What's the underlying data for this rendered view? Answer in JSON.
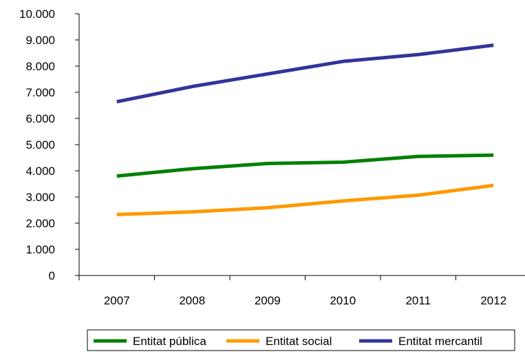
{
  "chart_data": {
    "type": "line",
    "x": [
      "2007",
      "2008",
      "2009",
      "2010",
      "2011",
      "2012"
    ],
    "y_ticks": [
      "0",
      "1.000",
      "2.000",
      "3.000",
      "4.000",
      "5.000",
      "6.000",
      "7.000",
      "8.000",
      "9.000",
      "10.000"
    ],
    "ylim": [
      0,
      10000
    ],
    "grid": false,
    "legend_position": "bottom",
    "series": [
      {
        "name": "Entitat pública",
        "color": "#008000",
        "values": [
          3800,
          4080,
          4280,
          4330,
          4550,
          4600
        ]
      },
      {
        "name": "Entitat social",
        "color": "#FF9900",
        "values": [
          2330,
          2430,
          2590,
          2850,
          3070,
          3440
        ]
      },
      {
        "name": "Entitat mercantil",
        "color": "#333399",
        "values": [
          6640,
          7220,
          7700,
          8180,
          8440,
          8800
        ]
      }
    ]
  }
}
